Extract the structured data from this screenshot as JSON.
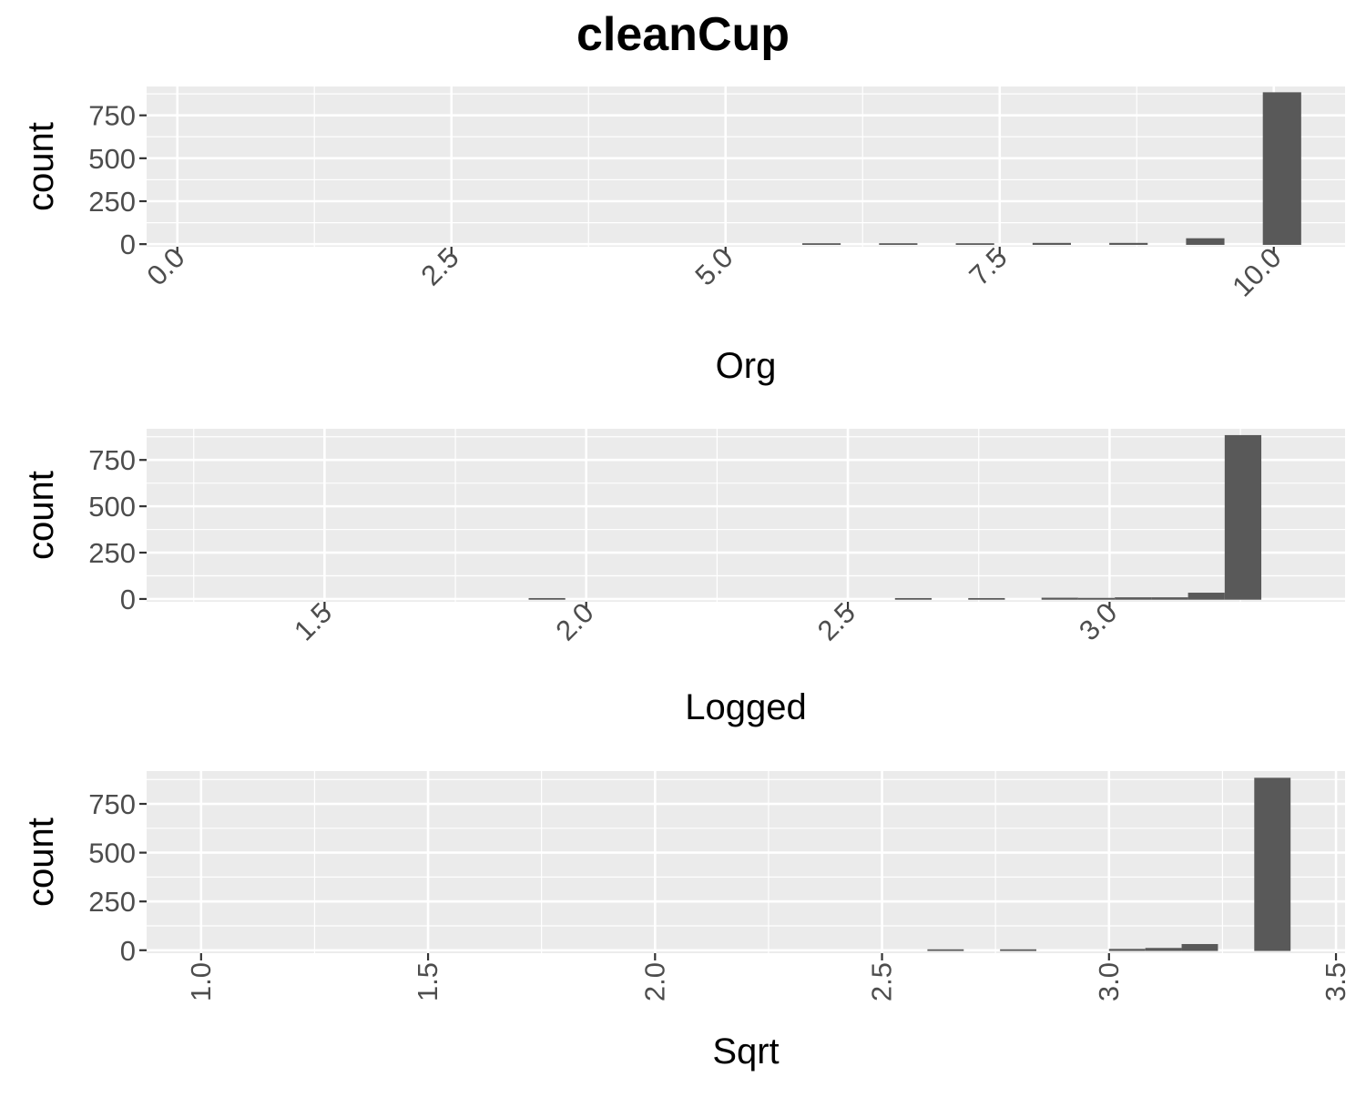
{
  "title": "cleanCup",
  "chart_data": [
    {
      "type": "bar",
      "xlabel": "Org",
      "ylabel": "count",
      "xlim": [
        -0.28,
        10.65
      ],
      "ylim": [
        -15,
        918
      ],
      "x_ticks": [
        0,
        2.5,
        5,
        7.5,
        10
      ],
      "x_tick_labels": [
        "0.0",
        "2.5",
        "5.0",
        "7.5",
        "10.0"
      ],
      "y_ticks": [
        0,
        250,
        500,
        750
      ],
      "y_tick_labels": [
        "0",
        "250",
        "500",
        "750"
      ],
      "tick_label_angle": -45,
      "bins": [
        {
          "x0": 5.7,
          "x1": 6.05,
          "count": 1
        },
        {
          "x0": 6.4,
          "x1": 6.75,
          "count": 1
        },
        {
          "x0": 7.1,
          "x1": 7.45,
          "count": 1
        },
        {
          "x0": 7.8,
          "x1": 8.15,
          "count": 3
        },
        {
          "x0": 8.5,
          "x1": 8.85,
          "count": 3
        },
        {
          "x0": 9.2,
          "x1": 9.55,
          "count": 30
        },
        {
          "x0": 9.9,
          "x1": 10.25,
          "count": 880
        }
      ],
      "bar_color": "#595959",
      "panel_background": "#EBEBEB",
      "grid": true
    },
    {
      "type": "bar",
      "xlabel": "Logged",
      "ylabel": "count",
      "xlim": [
        1.16,
        3.45
      ],
      "ylim": [
        -15,
        918
      ],
      "x_ticks": [
        1.5,
        2.0,
        2.5,
        3.0
      ],
      "x_tick_labels": [
        "1.5",
        "2.0",
        "2.5",
        "3.0"
      ],
      "y_ticks": [
        0,
        250,
        500,
        750
      ],
      "y_tick_labels": [
        "0",
        "250",
        "500",
        "750"
      ],
      "tick_label_angle": -45,
      "bins": [
        {
          "x0": 1.89,
          "x1": 1.96,
          "count": 1
        },
        {
          "x0": 2.59,
          "x1": 2.66,
          "count": 1
        },
        {
          "x0": 2.73,
          "x1": 2.8,
          "count": 1
        },
        {
          "x0": 2.87,
          "x1": 2.94,
          "count": 3
        },
        {
          "x0": 2.94,
          "x1": 3.01,
          "count": 2
        },
        {
          "x0": 3.01,
          "x1": 3.08,
          "count": 5
        },
        {
          "x0": 3.08,
          "x1": 3.15,
          "count": 5
        },
        {
          "x0": 3.15,
          "x1": 3.22,
          "count": 30
        },
        {
          "x0": 3.22,
          "x1": 3.29,
          "count": 880
        }
      ],
      "bar_color": "#595959",
      "panel_background": "#EBEBEB",
      "grid": true
    },
    {
      "type": "bar",
      "xlabel": "Sqrt",
      "ylabel": "count",
      "xlim": [
        0.88,
        3.52
      ],
      "ylim": [
        -15,
        918
      ],
      "x_ticks": [
        1.0,
        1.5,
        2.0,
        2.5,
        3.0,
        3.5
      ],
      "x_tick_labels": [
        "1.0",
        "1.5",
        "2.0",
        "2.5",
        "3.0",
        "3.5"
      ],
      "y_ticks": [
        0,
        250,
        500,
        750
      ],
      "y_tick_labels": [
        "0",
        "250",
        "500",
        "750"
      ],
      "tick_label_angle": -90,
      "bins": [
        {
          "x0": 2.6,
          "x1": 2.68,
          "count": 1
        },
        {
          "x0": 2.76,
          "x1": 2.84,
          "count": 1
        },
        {
          "x0": 3.0,
          "x1": 3.08,
          "count": 3
        },
        {
          "x0": 3.08,
          "x1": 3.16,
          "count": 8
        },
        {
          "x0": 3.16,
          "x1": 3.24,
          "count": 28
        },
        {
          "x0": 3.32,
          "x1": 3.4,
          "count": 880
        }
      ],
      "bar_color": "#595959",
      "panel_background": "#EBEBEB",
      "grid": true
    }
  ]
}
